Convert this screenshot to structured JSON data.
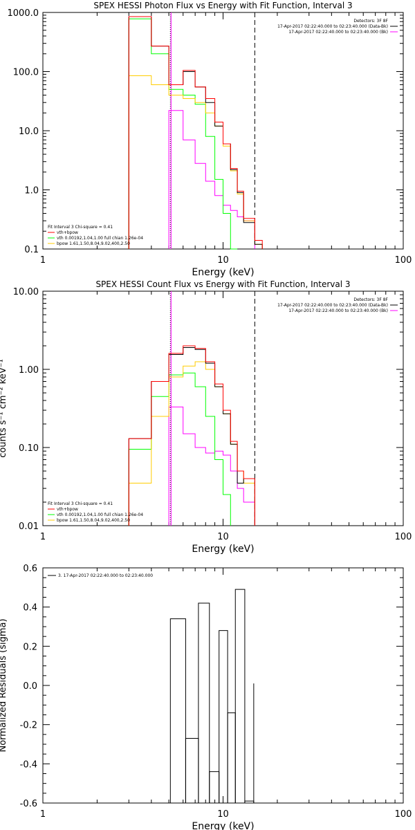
{
  "colors": {
    "background": "#ffffff",
    "axis": "#000000",
    "data": "#000000",
    "total_fit": "#ff0000",
    "vth": "#00ff00",
    "bpow": "#ffcc00",
    "background_spectrum": "#ff00ff"
  },
  "chart_data": [
    {
      "type": "line",
      "title": "SPEX HESSI Photon Flux vs Energy with Fit Function, Interval 3",
      "xlabel": "Energy (keV)",
      "ylabel": "",
      "xscale": "log",
      "yscale": "log",
      "xlim": [
        1,
        100
      ],
      "ylim": [
        0.1,
        1000
      ],
      "xticks": [
        "1",
        "10",
        "100"
      ],
      "yticks": [
        "0.1",
        "1.0",
        "10.0",
        "100.0",
        "1000.0"
      ],
      "bin_edges": [
        3,
        4,
        5,
        6,
        7,
        8,
        9,
        10,
        11,
        12,
        13,
        15
      ],
      "vlines": [
        {
          "x": 5.1,
          "style": "dotted",
          "color": "#000000"
        },
        {
          "x": 5.1,
          "style": "solid",
          "color": "#ff00ff"
        },
        {
          "x": 15,
          "style": "dashed",
          "color": "#000000"
        }
      ],
      "legend_tr": [
        "Detectors: 3F 8F",
        "17-Apr-2017 02:22:40.000 to 02:23:40.000 (Data-Bk)",
        "17-Apr-2017 02:22:40.000 to 02:23:40.000 (Bk)"
      ],
      "legend_bl": [
        "Fit Interval 3   Chi-square = 0.41",
        "vth+bpow",
        "vth 0.00192,1.04,1.00  full chian 1.26e-04",
        "bpow 1.61,1.50,8.04,9.02,400,2.50"
      ],
      "series": [
        {
          "key": "data",
          "color": "#000000",
          "values": [
            850,
            270,
            60,
            100,
            55,
            30,
            12,
            6,
            2.2,
            0.9,
            0.28,
            0.12
          ]
        },
        {
          "key": "total",
          "color": "#ff0000",
          "values": [
            850,
            270,
            60,
            105,
            55,
            35,
            14,
            6,
            2.3,
            0.95,
            0.33,
            0.14
          ]
        },
        {
          "key": "vth",
          "color": "#00ff00",
          "values": [
            780,
            200,
            50,
            40,
            28,
            8,
            1.5,
            0.4,
            0.1,
            null,
            null,
            null
          ]
        },
        {
          "key": "bpow",
          "color": "#ffcc00",
          "values": [
            85,
            60,
            40,
            35,
            30,
            20,
            12,
            5.5,
            2.1,
            0.85,
            0.3,
            0.12
          ]
        },
        {
          "key": "bk",
          "color": "#ff00ff",
          "values": [
            null,
            null,
            22,
            7,
            2.8,
            1.4,
            0.8,
            0.55,
            0.45,
            0.35,
            0.3,
            null
          ]
        }
      ]
    },
    {
      "type": "line",
      "title": "SPEX HESSI Count Flux vs Energy with Fit Function, Interval 3",
      "xlabel": "Energy (keV)",
      "ylabel": "counts s⁻¹ cm⁻² keV⁻¹",
      "xscale": "log",
      "yscale": "log",
      "xlim": [
        1,
        100
      ],
      "ylim": [
        0.01,
        10
      ],
      "xticks": [
        "1",
        "10",
        "100"
      ],
      "yticks": [
        "0.01",
        "0.10",
        "1.00",
        "10.00"
      ],
      "bin_edges": [
        3,
        4,
        5,
        6,
        7,
        8,
        9,
        10,
        11,
        12,
        13,
        15
      ],
      "vlines": [
        {
          "x": 5.1,
          "style": "dotted",
          "color": "#000000"
        },
        {
          "x": 5.1,
          "style": "solid",
          "color": "#ff00ff"
        },
        {
          "x": 15,
          "style": "dashed",
          "color": "#000000"
        }
      ],
      "legend_tr": [
        "Detectors: 3F 8F",
        "17-Apr-2017 02:22:40.000 to 02:23:40.000 (Data-Bk)",
        "17-Apr-2017 02:22:40.000 to 02:23:40.000 (Bk)"
      ],
      "legend_bl": [
        "Fit Interval 3   Chi-square = 0.41",
        "vth+bpow",
        "vth 0.00192,1.04,1.00  full chian 1.26e-04",
        "bpow 1.61,1.50,8.04,9.02,400,2.50"
      ],
      "series": [
        {
          "key": "data",
          "color": "#000000",
          "values": [
            0.13,
            0.7,
            1.55,
            1.9,
            1.8,
            1.2,
            0.6,
            0.27,
            0.11,
            0.035,
            0.04,
            null
          ]
        },
        {
          "key": "total",
          "color": "#ff0000",
          "values": [
            0.13,
            0.7,
            1.6,
            2.0,
            1.85,
            1.25,
            0.65,
            0.3,
            0.12,
            0.05,
            0.04,
            null
          ]
        },
        {
          "key": "vth",
          "color": "#00ff00",
          "values": [
            0.095,
            0.45,
            0.85,
            0.9,
            0.6,
            0.25,
            0.07,
            0.025,
            null,
            null,
            null,
            null
          ]
        },
        {
          "key": "bpow",
          "color": "#ffcc00",
          "values": [
            0.035,
            0.25,
            0.8,
            1.1,
            1.25,
            1.0,
            0.6,
            0.27,
            0.11,
            0.05,
            0.035,
            null
          ]
        },
        {
          "key": "bk",
          "color": "#ff00ff",
          "values": [
            null,
            null,
            0.33,
            0.15,
            0.1,
            0.085,
            0.09,
            0.08,
            0.05,
            0.03,
            0.02,
            null
          ]
        }
      ]
    },
    {
      "type": "line",
      "title": "",
      "xlabel": "Energy (keV)",
      "ylabel": "Normalized Residuals (sigma)",
      "xscale": "log",
      "yscale": "linear",
      "xlim": [
        1,
        100
      ],
      "ylim": [
        -0.6,
        0.6
      ],
      "xticks": [
        "1",
        "10",
        "100"
      ],
      "yticks": [
        "-0.6",
        "-0.4",
        "-0.2",
        "0.0",
        "0.2",
        "0.4",
        "0.6"
      ],
      "legend_tl": [
        "3. 17-Apr-2017 02:22:40.000 to 02:23:40.000"
      ],
      "bin_edges": [
        5.1,
        6.2,
        7.3,
        8.4,
        9.5,
        10.6,
        11.7,
        13.2,
        14.8
      ],
      "residuals": [
        0.34,
        -0.27,
        0.42,
        -0.44,
        0.28,
        -0.14,
        0.49,
        -0.59,
        0.01
      ]
    }
  ]
}
